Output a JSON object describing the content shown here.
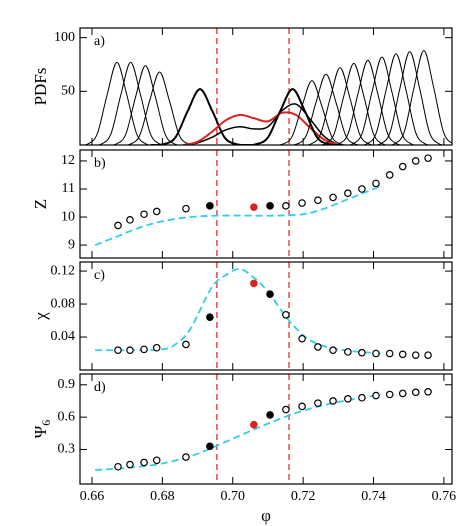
{
  "chart_data": [
    {
      "type": "line",
      "annotation": "a)",
      "ylabel": "PDFs",
      "ylim": [
        0,
        109
      ],
      "yticks": [
        50,
        100
      ],
      "series": [
        {
          "color": "#000000",
          "line_width": 1,
          "x": [
            0.6559,
            0.6587,
            0.6615,
            0.6643,
            0.6671,
            0.6699,
            0.6727,
            0.6755,
            0.6783
          ],
          "values": [
            0,
            0.8,
            10.4,
            46.7,
            77,
            46.7,
            10.4,
            0.8,
            0
          ]
        },
        {
          "color": "#000000",
          "line_width": 1,
          "x": [
            0.6598,
            0.6626,
            0.6654,
            0.6682,
            0.671,
            0.6738,
            0.6766,
            0.6794,
            0.6822
          ],
          "values": [
            0,
            0.8,
            10.4,
            46.7,
            77,
            46.7,
            10.4,
            0.8,
            0
          ]
        },
        {
          "color": "#000000",
          "line_width": 1,
          "x": [
            0.664,
            0.6668,
            0.6696,
            0.6724,
            0.6752,
            0.678,
            0.6808,
            0.6836,
            0.6864
          ],
          "values": [
            0,
            0.8,
            10,
            44.9,
            74,
            44.9,
            10,
            0.8,
            0
          ]
        },
        {
          "color": "#000000",
          "line_width": 1,
          "x": [
            0.668,
            0.6708,
            0.6736,
            0.6764,
            0.6792,
            0.682,
            0.6848,
            0.6876,
            0.6904
          ],
          "values": [
            0,
            0.7,
            9.2,
            41.3,
            68,
            41.3,
            9.2,
            0.7,
            0
          ]
        },
        {
          "color": "#000000",
          "line_width": 2,
          "x": [
            0.6767,
            0.6802,
            0.6837,
            0.6872,
            0.6907,
            0.6942,
            0.6977,
            0.7012,
            0.7047
          ],
          "values": [
            0,
            0.6,
            7,
            31.6,
            52,
            31.6,
            7,
            0.6,
            0
          ]
        },
        {
          "color": "#000000",
          "line_width": 1.5,
          "x": [
            0.686,
            0.69,
            0.694,
            0.698,
            0.702,
            0.706,
            0.71,
            0.714,
            0.718,
            0.722,
            0.726,
            0.73
          ],
          "values": [
            0,
            2,
            7,
            14,
            17,
            15,
            17,
            32,
            38,
            24,
            8,
            0
          ]
        },
        {
          "color": "#dd2222",
          "line_width": 2,
          "x": [
            0.686,
            0.69,
            0.694,
            0.698,
            0.702,
            0.706,
            0.71,
            0.714,
            0.718,
            0.722,
            0.726,
            0.73
          ],
          "values": [
            0,
            3,
            12,
            23,
            28,
            25,
            22,
            30,
            28,
            16,
            5,
            0
          ]
        },
        {
          "color": "#000000",
          "line_width": 2,
          "x": [
            0.703,
            0.7065,
            0.71,
            0.7135,
            0.717,
            0.7205,
            0.724,
            0.7275,
            0.731
          ],
          "values": [
            0,
            0.6,
            7,
            31.6,
            52,
            31.6,
            7,
            0.6,
            0
          ]
        },
        {
          "color": "#000000",
          "line_width": 1,
          "x": [
            0.7113,
            0.7141,
            0.7169,
            0.7197,
            0.7225,
            0.7253,
            0.7281,
            0.7309,
            0.7337
          ],
          "values": [
            0,
            0.7,
            8.1,
            36.4,
            60,
            36.4,
            8.1,
            0.7,
            0
          ]
        },
        {
          "color": "#000000",
          "line_width": 1,
          "x": [
            0.7153,
            0.7181,
            0.7209,
            0.7237,
            0.7265,
            0.7293,
            0.7321,
            0.7349,
            0.7377
          ],
          "values": [
            0,
            0.7,
            8.9,
            40.1,
            66,
            40.1,
            8.9,
            0.7,
            0
          ]
        },
        {
          "color": "#000000",
          "line_width": 1,
          "x": [
            0.7193,
            0.7221,
            0.7249,
            0.7277,
            0.7305,
            0.7333,
            0.7361,
            0.7389,
            0.7417
          ],
          "values": [
            0,
            0.8,
            9.7,
            43.7,
            72,
            43.7,
            9.7,
            0.8,
            0
          ]
        },
        {
          "color": "#000000",
          "line_width": 1,
          "x": [
            0.7232,
            0.726,
            0.7288,
            0.7316,
            0.7344,
            0.7372,
            0.74,
            0.7428,
            0.7456
          ],
          "values": [
            0,
            0.8,
            10.3,
            46.1,
            76,
            46.1,
            10.3,
            0.8,
            0
          ]
        },
        {
          "color": "#000000",
          "line_width": 1,
          "x": [
            0.7272,
            0.73,
            0.7328,
            0.7356,
            0.7384,
            0.7412,
            0.744,
            0.7468,
            0.7496
          ],
          "values": [
            0,
            0.9,
            10.7,
            48,
            79,
            48,
            10.7,
            0.9,
            0
          ]
        },
        {
          "color": "#000000",
          "line_width": 1,
          "x": [
            0.7312,
            0.734,
            0.7368,
            0.7396,
            0.7424,
            0.7452,
            0.748,
            0.7508,
            0.7536
          ],
          "values": [
            0,
            0.9,
            11.1,
            49.8,
            82,
            49.8,
            11.1,
            0.9,
            0
          ]
        },
        {
          "color": "#000000",
          "line_width": 1,
          "x": [
            0.7352,
            0.738,
            0.7408,
            0.7436,
            0.7464,
            0.7492,
            0.752,
            0.7548,
            0.7576
          ],
          "values": [
            0,
            0.9,
            11.5,
            51.6,
            85,
            51.6,
            11.5,
            0.9,
            0
          ]
        },
        {
          "color": "#000000",
          "line_width": 1,
          "x": [
            0.7391,
            0.7419,
            0.7447,
            0.7475,
            0.7503,
            0.7531,
            0.7559,
            0.7587,
            0.7615
          ],
          "values": [
            0,
            1,
            11.7,
            52.8,
            87,
            52.8,
            11.7,
            1,
            0
          ]
        },
        {
          "color": "#000000",
          "line_width": 1,
          "x": [
            0.7431,
            0.7459,
            0.7487,
            0.7515,
            0.7543,
            0.7571,
            0.7599,
            0.7627,
            0.7655
          ],
          "values": [
            0,
            1,
            11.9,
            53.4,
            88,
            53.4,
            11.9,
            1,
            0
          ]
        }
      ]
    },
    {
      "type": "scatter",
      "annotation": "b)",
      "ylabel": "Z",
      "ylim": [
        8.54,
        12.39
      ],
      "yticks": [
        9,
        10,
        11,
        12
      ],
      "points": {
        "x": [
          0.6674,
          0.6708,
          0.6748,
          0.6784,
          0.6867,
          0.6935,
          0.706,
          0.7106,
          0.7151,
          0.7197,
          0.7242,
          0.7285,
          0.7327,
          0.7367,
          0.7407,
          0.7446,
          0.7483,
          0.752,
          0.7555
        ],
        "values": [
          9.7,
          9.9,
          10.1,
          10.2,
          10.3,
          10.4,
          10.35,
          10.4,
          10.4,
          10.5,
          10.6,
          10.7,
          10.85,
          11.0,
          11.2,
          11.5,
          11.8,
          12.0,
          12.1
        ],
        "fill": [
          "#ffffff",
          "#ffffff",
          "#ffffff",
          "#ffffff",
          "#ffffff",
          "#000000",
          "#e02020",
          "#000000",
          "#ffffff",
          "#ffffff",
          "#ffffff",
          "#ffffff",
          "#ffffff",
          "#ffffff",
          "#ffffff",
          "#ffffff",
          "#ffffff",
          "#ffffff",
          "#ffffff"
        ]
      },
      "curve": {
        "color": "#2fd0e4",
        "x": [
          0.6609,
          0.667,
          0.673,
          0.68,
          0.688,
          0.696,
          0.704,
          0.712,
          0.72,
          0.726,
          0.732,
          0.738,
          0.742
        ],
        "values": [
          9.0,
          9.3,
          9.6,
          9.85,
          10.0,
          10.05,
          10.05,
          10.05,
          10.1,
          10.3,
          10.6,
          10.9,
          11.1
        ]
      }
    },
    {
      "type": "scatter",
      "annotation": "c)",
      "ylabel": "χ",
      "ylim": [
        0,
        0.131
      ],
      "yticks": [
        0.04,
        0.08,
        0.12
      ],
      "points": {
        "x": [
          0.6674,
          0.6708,
          0.6748,
          0.6784,
          0.6867,
          0.6935,
          0.706,
          0.7106,
          0.7151,
          0.7197,
          0.7242,
          0.7285,
          0.7327,
          0.7367,
          0.7407,
          0.7446,
          0.7483,
          0.752,
          0.7555
        ],
        "values": [
          0.024,
          0.024,
          0.025,
          0.027,
          0.031,
          0.064,
          0.105,
          0.092,
          0.067,
          0.038,
          0.028,
          0.024,
          0.022,
          0.021,
          0.02,
          0.02,
          0.019,
          0.018,
          0.018
        ],
        "fill": [
          "#ffffff",
          "#ffffff",
          "#ffffff",
          "#ffffff",
          "#ffffff",
          "#000000",
          "#e02020",
          "#000000",
          "#ffffff",
          "#ffffff",
          "#ffffff",
          "#ffffff",
          "#ffffff",
          "#ffffff",
          "#ffffff",
          "#ffffff",
          "#ffffff",
          "#ffffff",
          "#ffffff"
        ]
      },
      "curve": {
        "color": "#2fd0e4",
        "x": [
          0.6609,
          0.67,
          0.68,
          0.684,
          0.688,
          0.694,
          0.698,
          0.702,
          0.706,
          0.71,
          0.716,
          0.722,
          0.73,
          0.742
        ],
        "values": [
          0.024,
          0.024,
          0.025,
          0.032,
          0.05,
          0.1,
          0.115,
          0.1225,
          0.112,
          0.095,
          0.06,
          0.036,
          0.025,
          0.02
        ]
      }
    },
    {
      "type": "scatter",
      "annotation": "d)",
      "ylabel": "Ψ",
      "ylabel_subscript": "6",
      "xlabel": "φ",
      "ylim": [
        -0.02,
        1.0
      ],
      "yticks": [
        0.3,
        0.6,
        0.9
      ],
      "xlim": [
        0.6566,
        0.7623
      ],
      "xticks": [
        0.66,
        0.68,
        {
          "value": 0.7,
          "label": "0.70"
        },
        0.72,
        0.74,
        0.76
      ],
      "vlines": [
        0.6955,
        0.716
      ],
      "vline_color": "#e03030",
      "points": {
        "x": [
          0.6674,
          0.6708,
          0.6748,
          0.6784,
          0.6867,
          0.6935,
          0.706,
          0.7106,
          0.7151,
          0.7197,
          0.7242,
          0.7285,
          0.7327,
          0.7367,
          0.7407,
          0.7446,
          0.7483,
          0.752,
          0.7555
        ],
        "values": [
          0.14,
          0.16,
          0.18,
          0.2,
          0.23,
          0.33,
          0.53,
          0.62,
          0.67,
          0.7,
          0.73,
          0.75,
          0.77,
          0.78,
          0.8,
          0.81,
          0.82,
          0.83,
          0.835
        ],
        "fill": [
          "#ffffff",
          "#ffffff",
          "#ffffff",
          "#ffffff",
          "#ffffff",
          "#000000",
          "#e02020",
          "#000000",
          "#ffffff",
          "#ffffff",
          "#ffffff",
          "#ffffff",
          "#ffffff",
          "#ffffff",
          "#ffffff",
          "#ffffff",
          "#ffffff",
          "#ffffff",
          "#ffffff"
        ]
      },
      "curve": {
        "color": "#2fd0e4",
        "x": [
          0.6609,
          0.67,
          0.68,
          0.69,
          0.7,
          0.71,
          0.72,
          0.73,
          0.742
        ],
        "values": [
          0.11,
          0.13,
          0.17,
          0.26,
          0.4,
          0.54,
          0.66,
          0.74,
          0.81
        ]
      }
    }
  ]
}
